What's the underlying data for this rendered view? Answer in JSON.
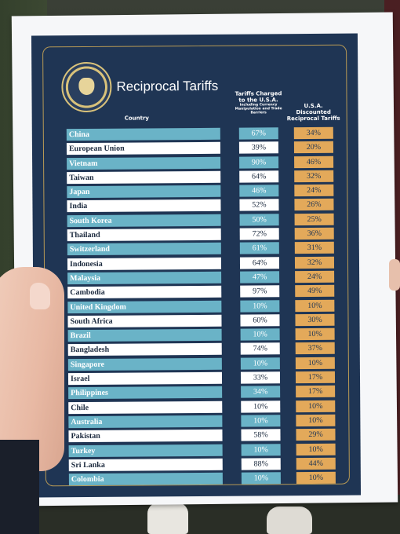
{
  "sheet": {
    "title": "Reciprocal Tariffs",
    "headers": {
      "country": "Country",
      "charged": "Tariffs Charged to the U.S.A.",
      "charged_sub": "Including Currency Manipulation and Trade Barriers",
      "discounted": "U.S.A. Discounted Reciprocal Tariffs"
    },
    "seal_text": "PRESIDENT OF THE UNITED STATES",
    "rows": [
      {
        "country": "China",
        "charged": "67%",
        "discounted": "34%"
      },
      {
        "country": "European Union",
        "charged": "39%",
        "discounted": "20%"
      },
      {
        "country": "Vietnam",
        "charged": "90%",
        "discounted": "46%"
      },
      {
        "country": "Taiwan",
        "charged": "64%",
        "discounted": "32%"
      },
      {
        "country": "Japan",
        "charged": "46%",
        "discounted": "24%"
      },
      {
        "country": "India",
        "charged": "52%",
        "discounted": "26%"
      },
      {
        "country": "South Korea",
        "charged": "50%",
        "discounted": "25%"
      },
      {
        "country": "Thailand",
        "charged": "72%",
        "discounted": "36%"
      },
      {
        "country": "Switzerland",
        "charged": "61%",
        "discounted": "31%"
      },
      {
        "country": "Indonesia",
        "charged": "64%",
        "discounted": "32%"
      },
      {
        "country": "Malaysia",
        "charged": "47%",
        "discounted": "24%"
      },
      {
        "country": "Cambodia",
        "charged": "97%",
        "discounted": "49%"
      },
      {
        "country": "United Kingdom",
        "charged": "10%",
        "discounted": "10%"
      },
      {
        "country": "South Africa",
        "charged": "60%",
        "discounted": "30%"
      },
      {
        "country": "Brazil",
        "charged": "10%",
        "discounted": "10%"
      },
      {
        "country": "Bangladesh",
        "charged": "74%",
        "discounted": "37%"
      },
      {
        "country": "Singapore",
        "charged": "10%",
        "discounted": "10%"
      },
      {
        "country": "Israel",
        "charged": "33%",
        "discounted": "17%"
      },
      {
        "country": "Philippines",
        "charged": "34%",
        "discounted": "17%"
      },
      {
        "country": "Chile",
        "charged": "10%",
        "discounted": "10%"
      },
      {
        "country": "Australia",
        "charged": "10%",
        "discounted": "10%"
      },
      {
        "country": "Pakistan",
        "charged": "58%",
        "discounted": "29%"
      },
      {
        "country": "Turkey",
        "charged": "10%",
        "discounted": "10%"
      },
      {
        "country": "Sri Lanka",
        "charged": "88%",
        "discounted": "44%"
      },
      {
        "country": "Colombia",
        "charged": "10%",
        "discounted": "10%"
      }
    ]
  },
  "colors": {
    "navy": "#1f3554",
    "teal_row": "#6ab3c7",
    "gold": "#e3a95a"
  }
}
